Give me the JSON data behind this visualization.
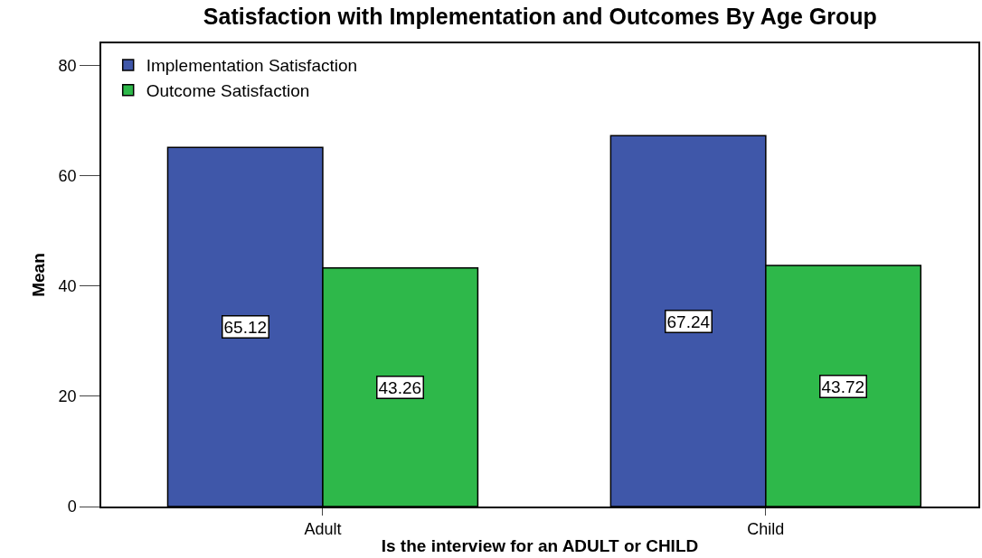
{
  "chart_data": {
    "type": "bar",
    "title": "Satisfaction with Implementation and Outcomes By Age Group",
    "xlabel": "Is the interview for an ADULT or CHILD",
    "ylabel": "Mean",
    "categories": [
      "Adult",
      "Child"
    ],
    "series": [
      {
        "name": "Implementation Satisfaction",
        "color": "#3f57a9",
        "values": [
          65.12,
          67.24
        ]
      },
      {
        "name": "Outcome Satisfaction",
        "color": "#2eb84a",
        "values": [
          43.26,
          43.72
        ]
      }
    ],
    "ylim": [
      0,
      84
    ],
    "yticks": [
      0,
      20,
      40,
      60,
      80
    ],
    "legend": "top left",
    "data_labels": true
  }
}
